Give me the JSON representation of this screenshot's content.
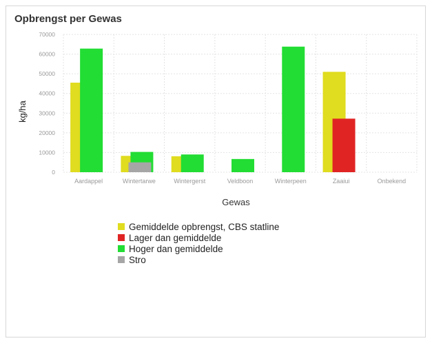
{
  "chart_data": {
    "type": "bar",
    "title": "Opbrengst per Gewas",
    "xlabel": "Gewas",
    "ylabel": "kg/ha",
    "ylim": [
      0,
      70000
    ],
    "yticks": [
      0,
      10000,
      20000,
      30000,
      40000,
      50000,
      60000,
      70000
    ],
    "grid": true,
    "legend_position": "bottom",
    "categories": [
      "Aardappel",
      "Wintertarwe",
      "Wintergerst",
      "Veldboon",
      "Winterpeen",
      "Zaaiui",
      "Onbekend"
    ],
    "series": [
      {
        "name": "Gemiddelde opbrengst, CBS statline",
        "color": "#e0dc1f",
        "values": [
          45500,
          8300,
          8100,
          null,
          null,
          51000,
          null
        ]
      },
      {
        "name": "Lager dan gemiddelde",
        "color": "#e02424",
        "values": [
          null,
          null,
          null,
          null,
          null,
          27200,
          null
        ]
      },
      {
        "name": "Hoger dan gemiddelde",
        "color": "#22dd33",
        "values": [
          62800,
          10300,
          9000,
          6700,
          63800,
          null,
          null
        ]
      },
      {
        "name": "Stro",
        "color": "#a6a6a6",
        "values": [
          null,
          5000,
          null,
          null,
          null,
          null,
          null
        ]
      }
    ]
  }
}
